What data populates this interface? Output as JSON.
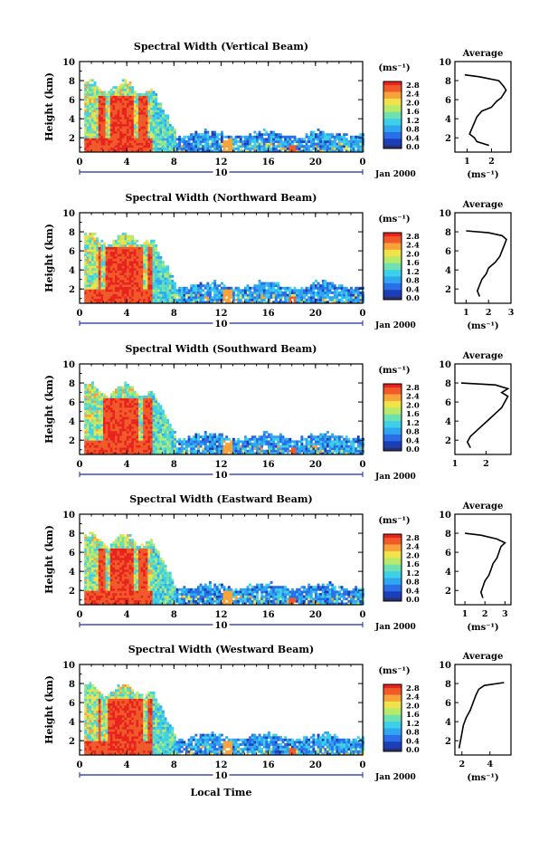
{
  "figure": {
    "xlabel": "Local Time",
    "date_label": "Jan 2000",
    "day_label": "10",
    "unit_label": "(ms⁻¹)",
    "avg_title": "Average",
    "height_label": "Height (km)"
  },
  "colors": {
    "colormap": [
      "#2b2f6b",
      "#1c3fb8",
      "#2a6ee8",
      "#2fa6f0",
      "#3dd0e8",
      "#6fe0b0",
      "#b8ea6a",
      "#f0e24a",
      "#f8a33a",
      "#f05a2a",
      "#e8231e"
    ]
  },
  "chart_data": [
    {
      "type": "heatmap",
      "title": "Spectral Width (Vertical Beam)",
      "ylabel": "Height (km)",
      "xlabel": "",
      "xticks": [
        "0",
        "4",
        "8",
        "12",
        "16",
        "20",
        "0"
      ],
      "yticks": [
        "2",
        "4",
        "6",
        "8",
        "10"
      ],
      "xlim": [
        0,
        24
      ],
      "ylim": [
        0.5,
        10
      ],
      "colorbar": {
        "label": "(ms⁻¹)",
        "ticks": [
          "0.0",
          "0.4",
          "0.8",
          "1.2",
          "1.6",
          "2.0",
          "2.4",
          "2.8"
        ]
      },
      "average": {
        "title": "Average",
        "xlabel": "(ms⁻¹)",
        "xticks": [
          "1",
          "2"
        ],
        "xlim": [
          0.5,
          2.8
        ],
        "yticks": [
          "2",
          "4",
          "6",
          "8",
          "10"
        ],
        "profile": [
          [
            1.9,
            1.2
          ],
          [
            1.4,
            1.6
          ],
          [
            1.3,
            2.0
          ],
          [
            1.1,
            2.4
          ],
          [
            1.2,
            3.0
          ],
          [
            1.3,
            3.6
          ],
          [
            1.4,
            4.2
          ],
          [
            1.6,
            4.8
          ],
          [
            2.0,
            5.2
          ],
          [
            2.2,
            5.8
          ],
          [
            2.4,
            6.2
          ],
          [
            2.5,
            6.6
          ],
          [
            2.6,
            7.0
          ],
          [
            2.5,
            7.4
          ],
          [
            2.3,
            8.0
          ],
          [
            1.5,
            8.4
          ],
          [
            0.9,
            8.6
          ]
        ]
      }
    },
    {
      "type": "heatmap",
      "title": "Spectral Width (Northward Beam)",
      "ylabel": "Height (km)",
      "xlabel": "",
      "xticks": [
        "0",
        "4",
        "8",
        "12",
        "16",
        "20",
        "0"
      ],
      "yticks": [
        "2",
        "4",
        "6",
        "8",
        "10"
      ],
      "xlim": [
        0,
        24
      ],
      "ylim": [
        0.5,
        10
      ],
      "colorbar": {
        "label": "(ms⁻¹)",
        "ticks": [
          "0.0",
          "0.4",
          "0.8",
          "1.2",
          "1.6",
          "2.0",
          "2.4",
          "2.8"
        ]
      },
      "average": {
        "title": "Average",
        "xlabel": "(ms⁻¹)",
        "xticks": [
          "1",
          "2",
          "3"
        ],
        "xlim": [
          0.5,
          3.0
        ],
        "yticks": [
          "2",
          "4",
          "6",
          "8",
          "10"
        ],
        "profile": [
          [
            1.6,
            1.2
          ],
          [
            1.5,
            1.8
          ],
          [
            1.6,
            2.4
          ],
          [
            1.7,
            3.0
          ],
          [
            1.9,
            3.6
          ],
          [
            2.0,
            4.2
          ],
          [
            2.3,
            4.8
          ],
          [
            2.5,
            5.4
          ],
          [
            2.6,
            6.0
          ],
          [
            2.7,
            6.6
          ],
          [
            2.8,
            7.2
          ],
          [
            2.6,
            7.6
          ],
          [
            2.0,
            7.9
          ],
          [
            1.0,
            8.1
          ]
        ]
      }
    },
    {
      "type": "heatmap",
      "title": "Spectral Width (Southward Beam)",
      "ylabel": "Height (km)",
      "xlabel": "",
      "xticks": [
        "0",
        "4",
        "8",
        "12",
        "16",
        "20",
        "0"
      ],
      "yticks": [
        "2",
        "4",
        "6",
        "8",
        "10"
      ],
      "xlim": [
        0,
        24
      ],
      "ylim": [
        0.5,
        10
      ],
      "colorbar": {
        "label": "(ms⁻¹)",
        "ticks": [
          "0.0",
          "0.4",
          "0.8",
          "1.2",
          "1.6",
          "2.0",
          "2.4",
          "2.8"
        ]
      },
      "average": {
        "title": "Average",
        "xlabel": "",
        "xticks": [
          "1",
          "2"
        ],
        "xlim": [
          1.0,
          2.8
        ],
        "yticks": [
          "2",
          "4",
          "6",
          "8",
          "10"
        ],
        "profile": [
          [
            1.5,
            1.2
          ],
          [
            1.4,
            1.8
          ],
          [
            1.5,
            2.4
          ],
          [
            1.7,
            3.0
          ],
          [
            1.9,
            3.6
          ],
          [
            2.1,
            4.2
          ],
          [
            2.3,
            4.8
          ],
          [
            2.5,
            5.4
          ],
          [
            2.6,
            6.0
          ],
          [
            2.7,
            6.6
          ],
          [
            2.5,
            7.0
          ],
          [
            2.7,
            7.4
          ],
          [
            2.3,
            7.8
          ],
          [
            1.2,
            8.0
          ]
        ]
      }
    },
    {
      "type": "heatmap",
      "title": "Spectral Width (Eastward Beam)",
      "ylabel": "Height (km)",
      "xlabel": "",
      "xticks": [
        "0",
        "4",
        "8",
        "12",
        "16",
        "20",
        "0"
      ],
      "yticks": [
        "2",
        "4",
        "6",
        "8",
        "10"
      ],
      "xlim": [
        0,
        24
      ],
      "ylim": [
        0.5,
        10
      ],
      "colorbar": {
        "label": "(ms⁻¹)",
        "ticks": [
          "0.0",
          "0.4",
          "0.8",
          "1.2",
          "1.6",
          "2.0",
          "2.4",
          "2.8"
        ]
      },
      "average": {
        "title": "Average",
        "xlabel": "(ms⁻¹)",
        "xticks": [
          "1",
          "2",
          "3"
        ],
        "xlim": [
          0.5,
          3.3
        ],
        "yticks": [
          "2",
          "4",
          "6",
          "8",
          "10"
        ],
        "profile": [
          [
            1.9,
            1.2
          ],
          [
            1.8,
            1.8
          ],
          [
            1.9,
            2.4
          ],
          [
            2.0,
            3.0
          ],
          [
            2.2,
            3.6
          ],
          [
            2.3,
            4.2
          ],
          [
            2.4,
            4.8
          ],
          [
            2.6,
            5.4
          ],
          [
            2.7,
            6.0
          ],
          [
            2.8,
            6.6
          ],
          [
            3.0,
            7.0
          ],
          [
            2.6,
            7.4
          ],
          [
            1.8,
            7.8
          ],
          [
            1.0,
            8.0
          ]
        ]
      }
    },
    {
      "type": "heatmap",
      "title": "Spectral Width (Westward Beam)",
      "ylabel": "Height (km)",
      "xlabel": "Local Time",
      "xticks": [
        "0",
        "4",
        "8",
        "12",
        "16",
        "20",
        "0"
      ],
      "yticks": [
        "2",
        "4",
        "6",
        "8",
        "10"
      ],
      "xlim": [
        0,
        24
      ],
      "ylim": [
        0.5,
        10
      ],
      "colorbar": {
        "label": "(ms⁻¹)",
        "ticks": [
          "0.0",
          "0.4",
          "0.8",
          "1.2",
          "1.6",
          "2.0",
          "2.4",
          "2.8"
        ]
      },
      "average": {
        "title": "Average",
        "xlabel": "(ms⁻¹)",
        "xticks": [
          "2",
          "4"
        ],
        "xlim": [
          1.5,
          5.5
        ],
        "yticks": [
          "2",
          "4",
          "6",
          "8",
          "10"
        ],
        "profile": [
          [
            1.8,
            1.2
          ],
          [
            1.9,
            2.0
          ],
          [
            2.0,
            2.8
          ],
          [
            2.1,
            3.6
          ],
          [
            2.3,
            4.4
          ],
          [
            2.6,
            5.2
          ],
          [
            2.8,
            6.0
          ],
          [
            3.0,
            6.8
          ],
          [
            3.2,
            7.4
          ],
          [
            3.6,
            7.8
          ],
          [
            5.0,
            8.1
          ]
        ]
      }
    }
  ]
}
